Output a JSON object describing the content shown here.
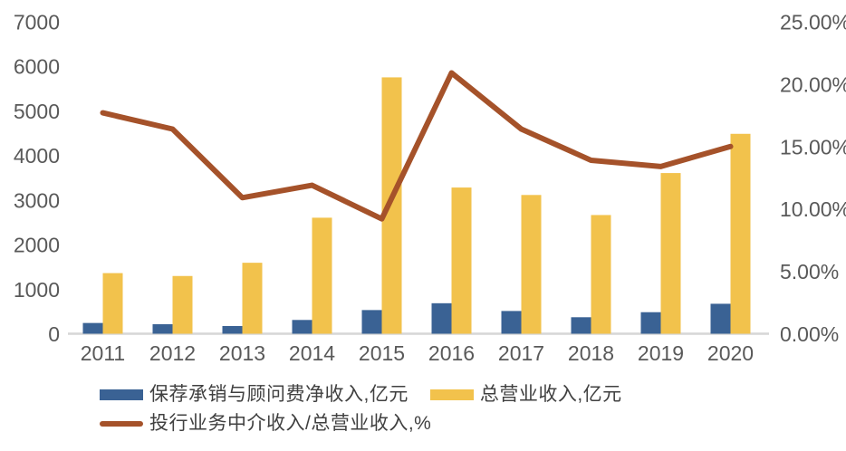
{
  "chart_data": {
    "type": "combo",
    "title": "",
    "xlabel": "",
    "ylabel_left": "",
    "ylabel_right": "",
    "grid": false,
    "legend_position": "bottom",
    "categories": [
      "2011",
      "2012",
      "2013",
      "2014",
      "2015",
      "2016",
      "2017",
      "2018",
      "2019",
      "2020"
    ],
    "series": [
      {
        "name": "保荐承销与顾问费净收入,亿元",
        "type": "bar",
        "axis": "left",
        "color": "#3A6294",
        "values": [
          241,
          213,
          173,
          309,
          531,
          684,
          510,
          370,
          483,
          672
        ]
      },
      {
        "name": "总营业收入,亿元",
        "type": "bar",
        "axis": "left",
        "color": "#F2C24C",
        "values": [
          1360,
          1295,
          1592,
          2603,
          5752,
          3280,
          3113,
          2663,
          3605,
          4485
        ]
      },
      {
        "name": "投行业务中介收入/总营业收入,%",
        "type": "line",
        "axis": "right",
        "color": "#A5522A",
        "values": [
          17.7,
          16.4,
          10.9,
          11.9,
          9.2,
          20.9,
          16.4,
          13.9,
          13.4,
          15.0
        ]
      }
    ],
    "left_axis": {
      "min": 0,
      "max": 7000,
      "step": 1000,
      "tick_labels": [
        "0",
        "1000",
        "2000",
        "3000",
        "4000",
        "5000",
        "6000",
        "7000"
      ]
    },
    "right_axis": {
      "min": 0,
      "max": 25,
      "step": 5,
      "tick_labels": [
        "0.00%",
        "5.00%",
        "10.00%",
        "15.00%",
        "20.00%",
        "25.00%"
      ]
    }
  },
  "colors": {
    "background": "#FFFFFF",
    "axis_text": "#595959",
    "axis_line": "#D6D6D6",
    "legend_text": "#404040"
  }
}
